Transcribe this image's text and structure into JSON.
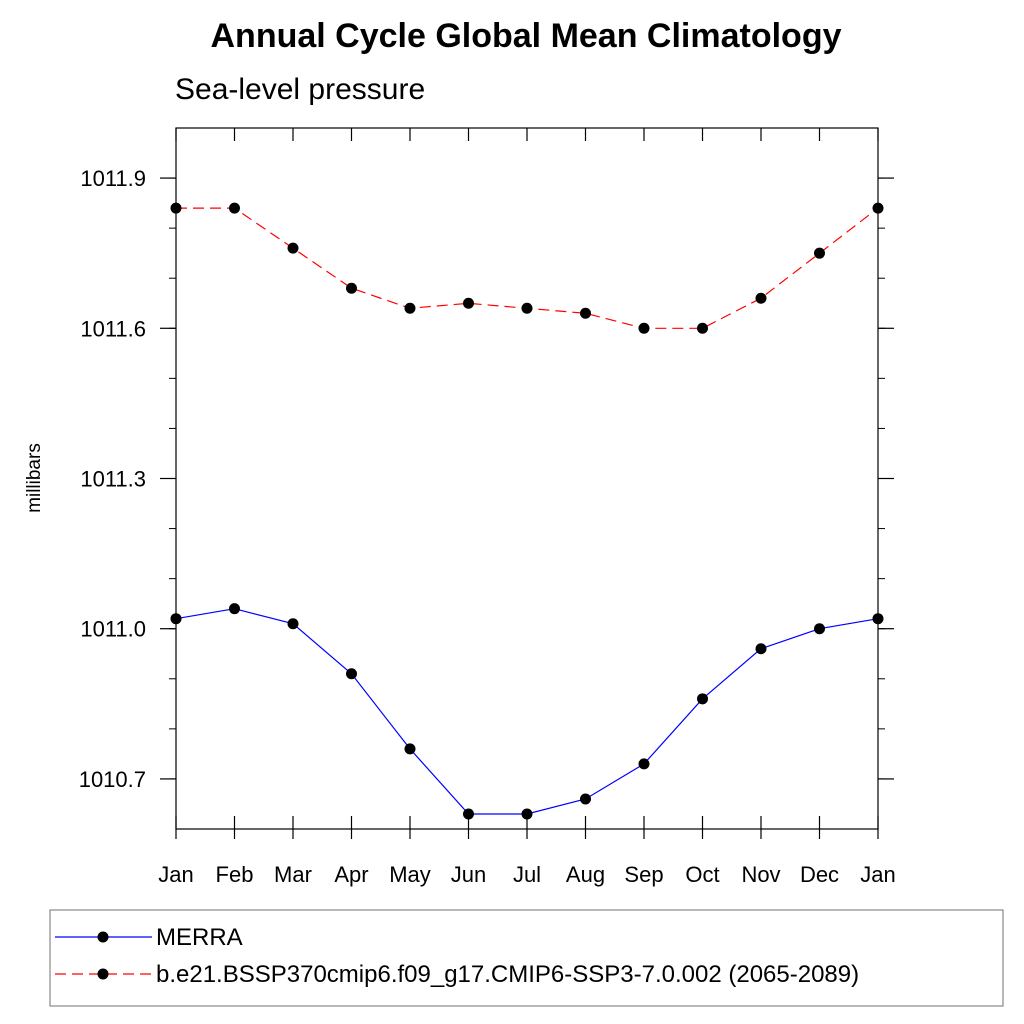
{
  "chart_data": {
    "type": "line",
    "title": "Annual Cycle Global Mean Climatology",
    "subtitle": "Sea-level pressure",
    "xlabel": "",
    "ylabel": "millibars",
    "categories": [
      "Jan",
      "Feb",
      "Mar",
      "Apr",
      "May",
      "Jun",
      "Jul",
      "Aug",
      "Sep",
      "Oct",
      "Nov",
      "Dec",
      "Jan"
    ],
    "ylim": [
      1010.6,
      1012.0
    ],
    "yticks": [
      1010.7,
      1011.0,
      1011.3,
      1011.6,
      1011.9
    ],
    "ytick_labels": [
      "1010.7",
      "1011.0",
      "1011.3",
      "1011.6",
      "1011.9"
    ],
    "grid": false,
    "legend_position": "bottom",
    "series": [
      {
        "name": "MERRA",
        "color": "#0000ff",
        "dashed": false,
        "values": [
          1011.02,
          1011.04,
          1011.01,
          1010.91,
          1010.76,
          1010.63,
          1010.63,
          1010.66,
          1010.73,
          1010.86,
          1010.96,
          1011.0,
          1011.02
        ]
      },
      {
        "name": "b.e21.BSSP370cmip6.f09_g17.CMIP6-SSP3-7.0.002 (2065-2089)",
        "color": "#ff0000",
        "dashed": true,
        "values": [
          1011.84,
          1011.84,
          1011.76,
          1011.68,
          1011.64,
          1011.65,
          1011.64,
          1011.63,
          1011.6,
          1011.6,
          1011.66,
          1011.75,
          1011.84
        ]
      }
    ]
  }
}
